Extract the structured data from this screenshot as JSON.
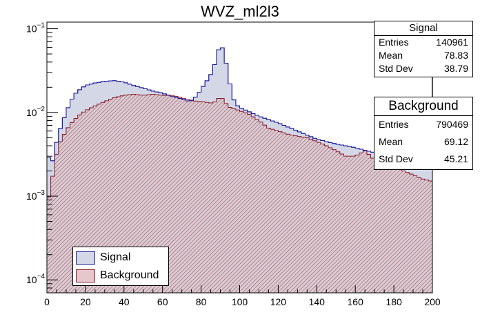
{
  "chart_data": {
    "type": "histogram",
    "title": "WVZ_ml2l3",
    "xlabel": "",
    "ylabel": "",
    "xlim": [
      0,
      200
    ],
    "ylim": [
      7e-05,
      0.12
    ],
    "yscale": "log",
    "x_ticks": [
      {
        "value": 0,
        "label": "0"
      },
      {
        "value": 20,
        "label": "20"
      },
      {
        "value": 40,
        "label": "40"
      },
      {
        "value": 60,
        "label": "60"
      },
      {
        "value": 80,
        "label": "80"
      },
      {
        "value": 100,
        "label": "100"
      },
      {
        "value": 120,
        "label": "120"
      },
      {
        "value": 140,
        "label": "140"
      },
      {
        "value": 160,
        "label": "160"
      },
      {
        "value": 180,
        "label": "180"
      },
      {
        "value": 200,
        "label": "200"
      }
    ],
    "y_ticks": [
      {
        "value": 0.1,
        "label": "10",
        "exp": "−1"
      },
      {
        "value": 0.01,
        "label": "10",
        "exp": "−2"
      },
      {
        "value": 0.001,
        "label": "10",
        "exp": "−3"
      },
      {
        "value": 0.0001,
        "label": "10",
        "exp": "−4"
      }
    ],
    "bin_width": 2,
    "series": [
      {
        "name": "Signal",
        "fill": "#d4d8e6",
        "line": "#1a1a9a",
        "points": [
          [
            0,
            0.0042
          ],
          [
            2,
            0.002
          ],
          [
            4,
            0.0035
          ],
          [
            6,
            0.0055
          ],
          [
            8,
            0.0075
          ],
          [
            10,
            0.01
          ],
          [
            12,
            0.013
          ],
          [
            14,
            0.016
          ],
          [
            16,
            0.018
          ],
          [
            20,
            0.021
          ],
          [
            25,
            0.0225
          ],
          [
            30,
            0.0235
          ],
          [
            35,
            0.024
          ],
          [
            40,
            0.023
          ],
          [
            45,
            0.021
          ],
          [
            50,
            0.0195
          ],
          [
            55,
            0.018
          ],
          [
            60,
            0.017
          ],
          [
            65,
            0.0155
          ],
          [
            70,
            0.0145
          ],
          [
            74,
            0.0135
          ],
          [
            76,
            0.0145
          ],
          [
            78,
            0.016
          ],
          [
            80,
            0.019
          ],
          [
            82,
            0.022
          ],
          [
            84,
            0.026
          ],
          [
            86,
            0.031
          ],
          [
            88,
            0.045
          ],
          [
            90,
            0.07
          ],
          [
            92,
            0.05
          ],
          [
            94,
            0.03
          ],
          [
            96,
            0.016
          ],
          [
            98,
            0.0125
          ],
          [
            100,
            0.0115
          ],
          [
            110,
            0.009
          ],
          [
            120,
            0.0075
          ],
          [
            130,
            0.006
          ],
          [
            140,
            0.0048
          ],
          [
            150,
            0.0042
          ],
          [
            160,
            0.0038
          ],
          [
            170,
            0.0033
          ],
          [
            180,
            0.0028
          ],
          [
            190,
            0.0026
          ],
          [
            200,
            0.0022
          ]
        ]
      },
      {
        "name": "Background",
        "fill": "#e6c8cc",
        "line": "#8a1a2a",
        "points": [
          [
            0,
            0.0008
          ],
          [
            2,
            0.0012
          ],
          [
            4,
            0.0025
          ],
          [
            6,
            0.004
          ],
          [
            8,
            0.005
          ],
          [
            10,
            0.006
          ],
          [
            12,
            0.0072
          ],
          [
            14,
            0.008
          ],
          [
            16,
            0.009
          ],
          [
            20,
            0.0105
          ],
          [
            25,
            0.012
          ],
          [
            30,
            0.0135
          ],
          [
            35,
            0.015
          ],
          [
            40,
            0.016
          ],
          [
            45,
            0.0165
          ],
          [
            50,
            0.016
          ],
          [
            55,
            0.0165
          ],
          [
            60,
            0.016
          ],
          [
            65,
            0.016
          ],
          [
            70,
            0.015
          ],
          [
            75,
            0.0138
          ],
          [
            80,
            0.0135
          ],
          [
            85,
            0.013
          ],
          [
            88,
            0.0135
          ],
          [
            90,
            0.016
          ],
          [
            92,
            0.0135
          ],
          [
            95,
            0.0115
          ],
          [
            100,
            0.0105
          ],
          [
            105,
            0.0095
          ],
          [
            110,
            0.008
          ],
          [
            115,
            0.0065
          ],
          [
            120,
            0.006
          ],
          [
            125,
            0.0055
          ],
          [
            130,
            0.0052
          ],
          [
            135,
            0.005
          ],
          [
            140,
            0.0045
          ],
          [
            145,
            0.004
          ],
          [
            150,
            0.0035
          ],
          [
            155,
            0.003
          ],
          [
            160,
            0.003
          ],
          [
            165,
            0.0035
          ],
          [
            170,
            0.0027
          ],
          [
            175,
            0.0025
          ],
          [
            180,
            0.0022
          ],
          [
            185,
            0.002
          ],
          [
            190,
            0.0018
          ],
          [
            195,
            0.0016
          ],
          [
            200,
            0.0015
          ]
        ]
      }
    ],
    "legend": {
      "placement": "bottom-left",
      "entries": [
        {
          "label": "Signal",
          "color": "#d4d8e6",
          "border": "#1a1a9a"
        },
        {
          "label": "Background",
          "color": "#e6c8cc",
          "border": "#8a1a2a"
        }
      ]
    },
    "stat_boxes": [
      {
        "name": "Signal",
        "rows": [
          {
            "label": "Entries",
            "value": "140961"
          },
          {
            "label": "Mean",
            "value": "78.83"
          },
          {
            "label": "Std Dev",
            "value": "38.79"
          }
        ]
      },
      {
        "name": "Background",
        "rows": [
          {
            "label": "Entries",
            "value": "790469"
          },
          {
            "label": "Mean",
            "value": "69.12"
          },
          {
            "label": "Std Dev",
            "value": "45.21"
          }
        ]
      }
    ]
  }
}
